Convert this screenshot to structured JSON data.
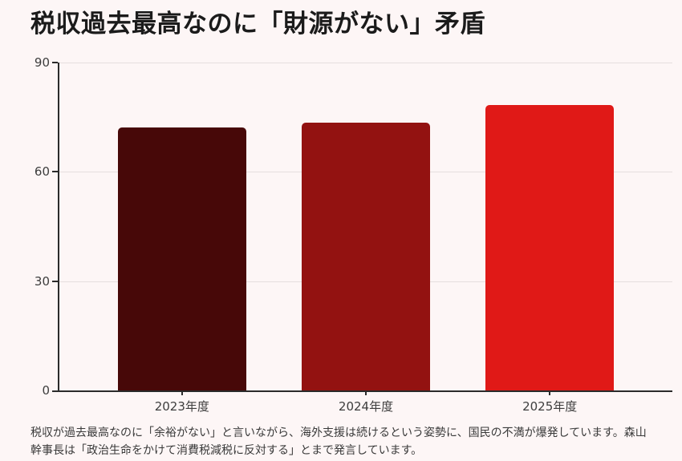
{
  "page": {
    "title": "税収過去最高なのに「財源がない」矛盾",
    "footer": "税収が過去最高なのに「余裕がない」と言いながら、海外支援は続けるという姿勢に、国民の不満が爆発しています。森山幹事長は「政治生命をかけて消費税減税に反対する」とまで発言しています。",
    "background_color": "#fdf6f6"
  },
  "chart_data": {
    "type": "bar",
    "title": "税収過去最高なのに「財源がない」矛盾",
    "categories": [
      "2023年度",
      "2024年度",
      "2025年度"
    ],
    "values": [
      72.1,
      73.4,
      78.4
    ],
    "bar_colors": [
      "#470808",
      "#931211",
      "#e01917"
    ],
    "bar_center_percents": [
      20,
      50,
      80
    ],
    "xlabel": "",
    "ylabel": "",
    "ylim": [
      0,
      90
    ],
    "yticks": [
      0,
      30,
      60,
      90
    ],
    "grid": true,
    "legend_position": "none",
    "axis_color": "#2b2b2b",
    "gridline_color": "#e6dfdf",
    "tick_label_color": "#3d3d3d"
  }
}
